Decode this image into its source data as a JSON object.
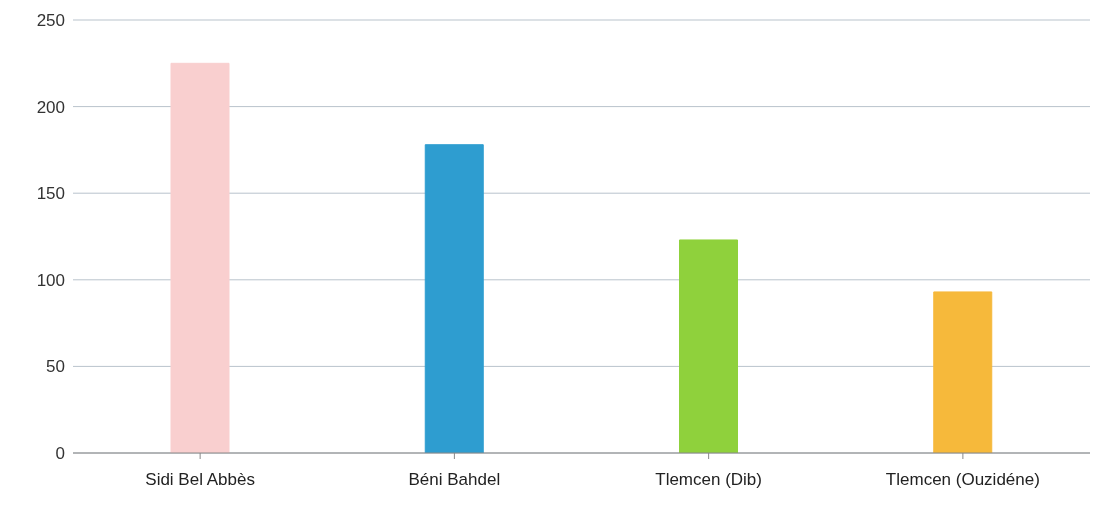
{
  "chart_data": {
    "type": "bar",
    "categories": [
      "Sidi Bel Abbès",
      "Béni Bahdel",
      "Tlemcen (Dib)",
      "Tlemcen (Ouzidéne)"
    ],
    "values": [
      225,
      178,
      123,
      93
    ],
    "colors": [
      "#f9cfcf",
      "#2e9dd0",
      "#8fd13c",
      "#f6b93b"
    ],
    "ylim": [
      0,
      250
    ],
    "yticks": [
      0,
      50,
      100,
      150,
      200,
      250
    ],
    "grid": "y",
    "legend": false
  }
}
